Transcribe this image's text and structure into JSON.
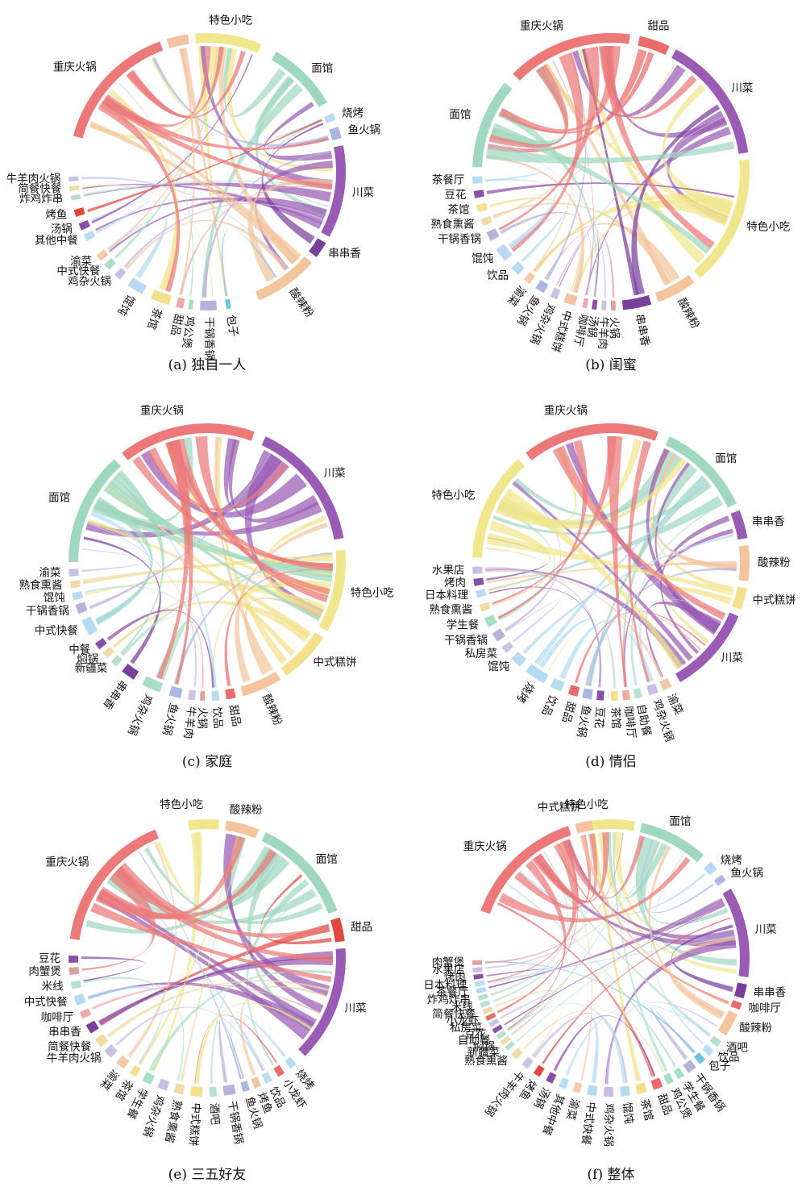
{
  "chart_data": [
    {
      "type": "chord",
      "caption": "(a) 独自一人",
      "categories": [
        {
          "name": "特色小吃",
          "start": -5,
          "end": 23,
          "color": "#f0e68c"
        },
        {
          "name": "面馆",
          "start": 30,
          "end": 60,
          "color": "#9fd8bf"
        },
        {
          "name": "烧烤",
          "start": 65,
          "end": 68,
          "color": "#b3dcf2"
        },
        {
          "name": "鱼火锅",
          "start": 71,
          "end": 76,
          "color": "#a9b7e3"
        },
        {
          "name": "川菜",
          "start": 79,
          "end": 118,
          "color": "#9a5bb4"
        },
        {
          "name": "串串香",
          "start": 121,
          "end": 128,
          "color": "#7a3f9c"
        },
        {
          "name": "酸辣粉",
          "start": 131,
          "end": 158,
          "color": "#f4c59c"
        },
        {
          "name": "包子",
          "start": 170,
          "end": 172,
          "color": "#6ec3e6"
        },
        {
          "name": "干锅香锅",
          "start": 176,
          "end": 183,
          "color": "#b9b0dc"
        },
        {
          "name": "鸡公煲",
          "start": 186,
          "end": 188,
          "color": "#a6e0c8"
        },
        {
          "name": "甜品",
          "start": 190,
          "end": 193,
          "color": "#f0a8a8"
        },
        {
          "name": "茶馆",
          "start": 196,
          "end": 204,
          "color": "#f4e08a"
        },
        {
          "name": "馄饨",
          "start": 208,
          "end": 215,
          "color": "#b8d9f0"
        },
        {
          "name": "鸡杂火锅",
          "start": 219,
          "end": 222,
          "color": "#c9bfe6"
        },
        {
          "name": "中式快餐",
          "start": 225,
          "end": 228,
          "color": "#a8dfc4"
        },
        {
          "name": "渝菜",
          "start": 230,
          "end": 233,
          "color": "#f6c9a8"
        },
        {
          "name": "其他中餐",
          "start": 240,
          "end": 243,
          "color": "#b6ddf0"
        },
        {
          "name": "汤锅",
          "start": 245,
          "end": 248,
          "color": "#8c4fa8"
        },
        {
          "name": "烤鱼",
          "start": 251,
          "end": 254,
          "color": "#e0483e"
        },
        {
          "name": "炸鸡炸串",
          "start": 258,
          "end": 260,
          "color": "#b7e1cf"
        },
        {
          "name": "简餐快餐",
          "start": 262,
          "end": 264,
          "color": "#f2d9a8"
        },
        {
          "name": "牛羊肉火锅",
          "start": 266,
          "end": 268,
          "color": "#c8c4e6"
        },
        {
          "name": "重庆火锅",
          "start": 285,
          "end": 340,
          "color": "#ec7878"
        },
        {
          "name": "",
          "start": 343,
          "end": 352,
          "color": "#f4c2a0"
        }
      ]
    },
    {
      "type": "chord",
      "caption": "(b) 闺蜜",
      "categories": [
        {
          "name": "甜品",
          "start": 12,
          "end": 25,
          "color": "#ec6b6b"
        },
        {
          "name": "川菜",
          "start": 28,
          "end": 82,
          "color": "#9a5bb4"
        },
        {
          "name": "特色小吃",
          "start": 85,
          "end": 140,
          "color": "#f0e68c"
        },
        {
          "name": "酸辣粉",
          "start": 143,
          "end": 160,
          "color": "#f4c59c"
        },
        {
          "name": "串串香",
          "start": 163,
          "end": 175,
          "color": "#7a3f9c"
        },
        {
          "name": "火锅",
          "start": 178,
          "end": 180,
          "color": "#e0a0a0"
        },
        {
          "name": "牛羊肉",
          "start": 182,
          "end": 184,
          "color": "#c8c4e6"
        },
        {
          "name": "汤锅",
          "start": 186,
          "end": 188,
          "color": "#8c4fa8"
        },
        {
          "name": "咖啡厅",
          "start": 190,
          "end": 192,
          "color": "#f0a8a8"
        },
        {
          "name": "中式糕饼",
          "start": 195,
          "end": 200,
          "color": "#f4c2a0"
        },
        {
          "name": "鸡杂火锅",
          "start": 203,
          "end": 206,
          "color": "#c9bfe6"
        },
        {
          "name": "鱼火锅",
          "start": 209,
          "end": 213,
          "color": "#a9b7e3"
        },
        {
          "name": "渝菜",
          "start": 216,
          "end": 219,
          "color": "#f6c9a8"
        },
        {
          "name": "饮品",
          "start": 222,
          "end": 226,
          "color": "#b6ddf0"
        },
        {
          "name": "馄饨",
          "start": 230,
          "end": 236,
          "color": "#b8d9f0"
        },
        {
          "name": "干锅香锅",
          "start": 240,
          "end": 244,
          "color": "#b9b0dc"
        },
        {
          "name": "熟食熏酱",
          "start": 247,
          "end": 250,
          "color": "#f2d9a8"
        },
        {
          "name": "茶馆",
          "start": 253,
          "end": 256,
          "color": "#f4e08a"
        },
        {
          "name": "豆花",
          "start": 259,
          "end": 262,
          "color": "#8c4fa8"
        },
        {
          "name": "茶餐厅",
          "start": 265,
          "end": 268,
          "color": "#b3dcf2"
        },
        {
          "name": "面馆",
          "start": 272,
          "end": 310,
          "color": "#9fd8bf"
        },
        {
          "name": "重庆火锅",
          "start": 315,
          "end": 8,
          "color": "#ec7878"
        }
      ]
    },
    {
      "type": "chord",
      "caption": "(c) 家庭",
      "categories": [
        {
          "name": "川菜",
          "start": 25,
          "end": 80,
          "color": "#9a5bb4"
        },
        {
          "name": "特色小吃",
          "start": 85,
          "end": 120,
          "color": "#f0e68c"
        },
        {
          "name": "中式糕饼",
          "start": 123,
          "end": 145,
          "color": "#f4e08a"
        },
        {
          "name": "酸辣粉",
          "start": 148,
          "end": 165,
          "color": "#f4c59c"
        },
        {
          "name": "甜品",
          "start": 168,
          "end": 172,
          "color": "#ec6b6b"
        },
        {
          "name": "饮品",
          "start": 175,
          "end": 178,
          "color": "#b6ddf0"
        },
        {
          "name": "火锅",
          "start": 181,
          "end": 183,
          "color": "#e0a0a0"
        },
        {
          "name": "牛羊肉",
          "start": 185,
          "end": 188,
          "color": "#c8c4e6"
        },
        {
          "name": "鱼火锅",
          "start": 191,
          "end": 196,
          "color": "#a9b7e3"
        },
        {
          "name": "鸡杂火锅",
          "start": 200,
          "end": 208,
          "color": "#a8dfc4"
        },
        {
          "name": "串串香",
          "start": 212,
          "end": 218,
          "color": "#7a3f9c"
        },
        {
          "name": "新疆菜",
          "start": 221,
          "end": 224,
          "color": "#b7e1cf"
        },
        {
          "name": "焖锅",
          "start": 226,
          "end": 229,
          "color": "#f2d9a8"
        },
        {
          "name": "中餐",
          "start": 231,
          "end": 234,
          "color": "#8c4fa8"
        },
        {
          "name": "中式快餐",
          "start": 238,
          "end": 245,
          "color": "#b3dcf2"
        },
        {
          "name": "干锅香锅",
          "start": 248,
          "end": 252,
          "color": "#b9b0dc"
        },
        {
          "name": "馄饨",
          "start": 254,
          "end": 257,
          "color": "#b8d9f0"
        },
        {
          "name": "熟食熏酱",
          "start": 259,
          "end": 262,
          "color": "#f2d9a8"
        },
        {
          "name": "渝菜",
          "start": 264,
          "end": 267,
          "color": "#c9bfe6"
        },
        {
          "name": "面馆",
          "start": 270,
          "end": 318,
          "color": "#9fd8bf"
        },
        {
          "name": "重庆火锅",
          "start": 322,
          "end": 20,
          "color": "#ec7878"
        }
      ]
    },
    {
      "type": "chord",
      "caption": "(d) 情侣",
      "categories": [
        {
          "name": "面馆",
          "start": 25,
          "end": 65,
          "color": "#9fd8bf"
        },
        {
          "name": "串串香",
          "start": 68,
          "end": 80,
          "color": "#9a5bb4"
        },
        {
          "name": "酸辣粉",
          "start": 83,
          "end": 98,
          "color": "#f4c59c"
        },
        {
          "name": "中式糕饼",
          "start": 101,
          "end": 110,
          "color": "#f4e08a"
        },
        {
          "name": "川菜",
          "start": 113,
          "end": 150,
          "color": "#9a5bb4"
        },
        {
          "name": "渝菜",
          "start": 154,
          "end": 158,
          "color": "#f6c9a8"
        },
        {
          "name": "鸡杂火锅",
          "start": 160,
          "end": 164,
          "color": "#c9bfe6"
        },
        {
          "name": "自助餐",
          "start": 167,
          "end": 170,
          "color": "#b7e1cf"
        },
        {
          "name": "咖啡厅",
          "start": 172,
          "end": 175,
          "color": "#f0a8a8"
        },
        {
          "name": "茶馆",
          "start": 177,
          "end": 180,
          "color": "#f4e08a"
        },
        {
          "name": "豆花",
          "start": 183,
          "end": 186,
          "color": "#8c4fa8"
        },
        {
          "name": "鱼火锅",
          "start": 188,
          "end": 192,
          "color": "#a9b7e3"
        },
        {
          "name": "甜品",
          "start": 194,
          "end": 198,
          "color": "#ec6b6b"
        },
        {
          "name": "饮品",
          "start": 201,
          "end": 206,
          "color": "#b6ddf0"
        },
        {
          "name": "烧烤",
          "start": 209,
          "end": 218,
          "color": "#b3dcf2"
        },
        {
          "name": "馄饨",
          "start": 221,
          "end": 226,
          "color": "#b8d9f0"
        },
        {
          "name": "私房菜",
          "start": 229,
          "end": 232,
          "color": "#c8c4e6"
        },
        {
          "name": "干锅香锅",
          "start": 235,
          "end": 239,
          "color": "#b9b0dc"
        },
        {
          "name": "学生餐",
          "start": 242,
          "end": 246,
          "color": "#a8dfc4"
        },
        {
          "name": "熟食熏酱",
          "start": 249,
          "end": 252,
          "color": "#f2d9a8"
        },
        {
          "name": "日本料理",
          "start": 255,
          "end": 258,
          "color": "#b6ddf0"
        },
        {
          "name": "烤肉",
          "start": 260,
          "end": 263,
          "color": "#8c4fa8"
        },
        {
          "name": "水果店",
          "start": 265,
          "end": 268,
          "color": "#c9bfe6"
        },
        {
          "name": "特色小吃",
          "start": 272,
          "end": 318,
          "color": "#f0e68c"
        },
        {
          "name": "重庆火锅",
          "start": 322,
          "end": 20,
          "color": "#ec7878"
        }
      ]
    },
    {
      "type": "chord",
      "caption": "(e) 三五好友",
      "categories": [
        {
          "name": "特色小吃",
          "start": -8,
          "end": 5,
          "color": "#f0e68c"
        },
        {
          "name": "酸辣粉",
          "start": 8,
          "end": 22,
          "color": "#f4c59c"
        },
        {
          "name": "面馆",
          "start": 25,
          "end": 70,
          "color": "#9fd8bf"
        },
        {
          "name": "甜品",
          "start": 73,
          "end": 83,
          "color": "#e0483e"
        },
        {
          "name": "川菜",
          "start": 86,
          "end": 135,
          "color": "#9a5bb4"
        },
        {
          "name": "烧烤",
          "start": 140,
          "end": 143,
          "color": "#b3dcf2"
        },
        {
          "name": "小龙虾",
          "start": 146,
          "end": 149,
          "color": "#ec6b6b"
        },
        {
          "name": "饮品",
          "start": 152,
          "end": 155,
          "color": "#b6ddf0"
        },
        {
          "name": "烤鱼",
          "start": 157,
          "end": 160,
          "color": "#f4c59c"
        },
        {
          "name": "鱼火锅",
          "start": 162,
          "end": 165,
          "color": "#a9b7e3"
        },
        {
          "name": "干锅香锅",
          "start": 168,
          "end": 173,
          "color": "#b9b0dc"
        },
        {
          "name": "酒吧",
          "start": 176,
          "end": 179,
          "color": "#b7e1cf"
        },
        {
          "name": "中式糕饼",
          "start": 182,
          "end": 187,
          "color": "#f4e08a"
        },
        {
          "name": "熟食熏酱",
          "start": 190,
          "end": 194,
          "color": "#f2d9a8"
        },
        {
          "name": "鸡杂火锅",
          "start": 197,
          "end": 201,
          "color": "#c9bfe6"
        },
        {
          "name": "学生餐",
          "start": 204,
          "end": 208,
          "color": "#a8dfc4"
        },
        {
          "name": "茶馆",
          "start": 211,
          "end": 214,
          "color": "#f4e08a"
        },
        {
          "name": "渝菜",
          "start": 217,
          "end": 221,
          "color": "#f6c9a8"
        },
        {
          "name": "牛羊肉火锅",
          "start": 224,
          "end": 228,
          "color": "#c8c4e6"
        },
        {
          "name": "简餐快餐",
          "start": 230,
          "end": 234,
          "color": "#f2d9a8"
        },
        {
          "name": "串串香",
          "start": 237,
          "end": 241,
          "color": "#7a3f9c"
        },
        {
          "name": "咖啡厅",
          "start": 244,
          "end": 247,
          "color": "#f0a8a8"
        },
        {
          "name": "中式快餐",
          "start": 250,
          "end": 254,
          "color": "#b3dcf2"
        },
        {
          "name": "米线",
          "start": 257,
          "end": 260,
          "color": "#b7e1cf"
        },
        {
          "name": "肉蟹煲",
          "start": 263,
          "end": 266,
          "color": "#e0a0a0"
        },
        {
          "name": "豆花",
          "start": 268,
          "end": 271,
          "color": "#8c4fa8"
        },
        {
          "name": "重庆火锅",
          "start": 278,
          "end": 338,
          "color": "#ec7878"
        }
      ]
    },
    {
      "type": "chord",
      "caption": "(f) 整体",
      "categories": [
        {
          "name": "特色小吃",
          "start": -12,
          "end": 10,
          "color": "#f0e68c"
        },
        {
          "name": "面馆",
          "start": 13,
          "end": 42,
          "color": "#9fd8bf"
        },
        {
          "name": "烧烤",
          "start": 46,
          "end": 50,
          "color": "#b3dcf2"
        },
        {
          "name": "鱼火锅",
          "start": 53,
          "end": 56,
          "color": "#a9b7e3"
        },
        {
          "name": "川菜",
          "start": 60,
          "end": 98,
          "color": "#9a5bb4"
        },
        {
          "name": "串串香",
          "start": 101,
          "end": 107,
          "color": "#7a3f9c"
        },
        {
          "name": "咖啡厅",
          "start": 109,
          "end": 112,
          "color": "#ec6b6b"
        },
        {
          "name": "酸辣粉",
          "start": 114,
          "end": 124,
          "color": "#f4c59c"
        },
        {
          "name": "酒吧",
          "start": 127,
          "end": 130,
          "color": "#b7e1cf"
        },
        {
          "name": "饮品",
          "start": 132,
          "end": 135,
          "color": "#b6ddf0"
        },
        {
          "name": "包子",
          "start": 137,
          "end": 140,
          "color": "#6ec3e6"
        },
        {
          "name": "干锅香锅",
          "start": 142,
          "end": 146,
          "color": "#b9b0dc"
        },
        {
          "name": "学生餐",
          "start": 148,
          "end": 151,
          "color": "#a8dfc4"
        },
        {
          "name": "鸡公煲",
          "start": 153,
          "end": 156,
          "color": "#a6e0c8"
        },
        {
          "name": "甜品",
          "start": 158,
          "end": 162,
          "color": "#ec6b6b"
        },
        {
          "name": "茶馆",
          "start": 165,
          "end": 169,
          "color": "#f4e08a"
        },
        {
          "name": "馄饨",
          "start": 172,
          "end": 176,
          "color": "#b8d9f0"
        },
        {
          "name": "鸡杂火锅",
          "start": 179,
          "end": 183,
          "color": "#c9bfe6"
        },
        {
          "name": "中式快餐",
          "start": 186,
          "end": 190,
          "color": "#b3dcf2"
        },
        {
          "name": "渝菜",
          "start": 193,
          "end": 196,
          "color": "#f6c9a8"
        },
        {
          "name": "其他中餐",
          "start": 199,
          "end": 202,
          "color": "#b6ddf0"
        },
        {
          "name": "汤锅",
          "start": 205,
          "end": 208,
          "color": "#8c4fa8"
        },
        {
          "name": "烤鱼",
          "start": 211,
          "end": 214,
          "color": "#e0483e"
        },
        {
          "name": "牛羊肉火锅",
          "start": 217,
          "end": 220,
          "color": "#c8c4e6"
        },
        {
          "name": "熟食熏酱",
          "start": 223,
          "end": 226,
          "color": "#f2d9a8"
        },
        {
          "name": "新疆菜",
          "start": 228,
          "end": 230,
          "color": "#b7e1cf"
        },
        {
          "name": "焖锅",
          "start": 231,
          "end": 233,
          "color": "#f2d9a8"
        },
        {
          "name": "自助餐",
          "start": 234,
          "end": 236,
          "color": "#b7e1cf"
        },
        {
          "name": "豆花",
          "start": 237,
          "end": 239,
          "color": "#8c4fa8"
        },
        {
          "name": "私房菜",
          "start": 240,
          "end": 242,
          "color": "#c8c4e6"
        },
        {
          "name": "小龙虾",
          "start": 243,
          "end": 245,
          "color": "#ec6b6b"
        },
        {
          "name": "简餐快餐",
          "start": 246,
          "end": 248,
          "color": "#f2d9a8"
        },
        {
          "name": "米线",
          "start": 249,
          "end": 251,
          "color": "#b7e1cf"
        },
        {
          "name": "炸鸡炸串",
          "start": 252,
          "end": 254,
          "color": "#b7e1cf"
        },
        {
          "name": "茶餐厅",
          "start": 255,
          "end": 257,
          "color": "#b3dcf2"
        },
        {
          "name": "日本料理",
          "start": 258,
          "end": 260,
          "color": "#b6ddf0"
        },
        {
          "name": "烤肉",
          "start": 261,
          "end": 263,
          "color": "#8c4fa8"
        },
        {
          "name": "水果店",
          "start": 264,
          "end": 266,
          "color": "#c9bfe6"
        },
        {
          "name": "肉蟹煲",
          "start": 267,
          "end": 269,
          "color": "#e0a0a0"
        },
        {
          "name": "重庆火锅",
          "start": 290,
          "end": 342,
          "color": "#ec7878"
        },
        {
          "name": "中式糕饼",
          "start": 345,
          "end": 352,
          "color": "#f4c2a0"
        }
      ]
    }
  ]
}
